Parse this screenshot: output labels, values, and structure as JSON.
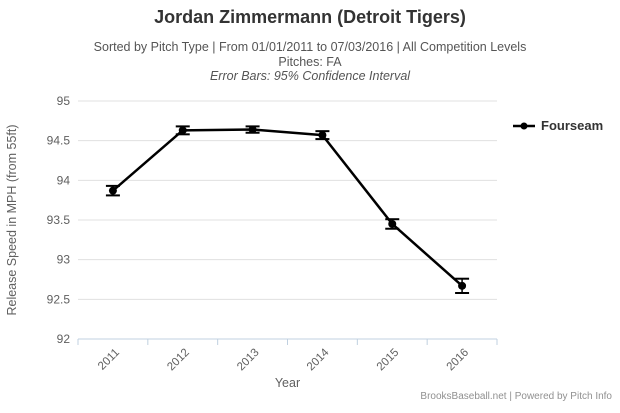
{
  "header": {
    "title": "Jordan Zimmermann (Detroit Tigers)",
    "subtitle_line1": "Sorted by Pitch Type | From 01/01/2011 to 07/03/2016 | All Competition Levels",
    "subtitle_line2": "Pitches: FA",
    "subtitle_line3": "Error Bars: 95% Confidence Interval"
  },
  "chart_data": {
    "type": "line",
    "title": "Jordan Zimmermann (Detroit Tigers)",
    "categories": [
      "2011",
      "2012",
      "2013",
      "2014",
      "2015",
      "2016"
    ],
    "series": [
      {
        "name": "Fourseam",
        "values": [
          93.87,
          94.63,
          94.64,
          94.57,
          93.45,
          92.67
        ],
        "error_plus_minus": [
          0.06,
          0.05,
          0.04,
          0.05,
          0.06,
          0.09
        ],
        "color": "#000000"
      }
    ],
    "xlabel": "Year",
    "ylabel": "Release Speed in MPH (from 55ft)",
    "ylim": [
      92,
      95
    ],
    "ytick_step": 0.5,
    "grid": true,
    "legend_position": "right",
    "error_bars_note": "95% Confidence Interval"
  },
  "legend": {
    "label": "Fourseam"
  },
  "axes": {
    "x_title": "Year",
    "y_title": "Release Speed in MPH (from 55ft)"
  },
  "footer": {
    "credit": "BrooksBaseball.net | Powered by Pitch Info"
  },
  "colors": {
    "series": "#000000",
    "grid": "#e0e0e0",
    "axis_line": "#c0d0e0",
    "tick_label": "#606060",
    "title": "#333333",
    "subtitle": "#555555",
    "credits": "#909090"
  }
}
